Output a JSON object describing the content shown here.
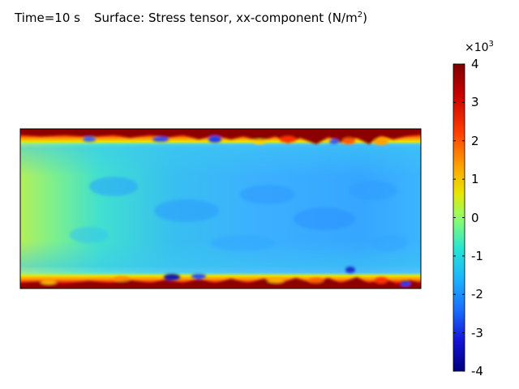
{
  "header": {
    "time_label": "Time=10 s",
    "title_prefix": "Surface: Stress tensor, xx-component (N/m",
    "title_exponent": "2",
    "title_suffix": ")"
  },
  "colorbar": {
    "scale_base": "×10",
    "scale_exponent": "3",
    "range": [
      -4,
      4
    ],
    "tick_labels": [
      "4",
      "3",
      "2",
      "1",
      "0",
      "-1",
      "-2",
      "-3",
      "-4"
    ],
    "colormap_stops": [
      "#7f0000",
      "#ff1a00",
      "#ff8c00",
      "#f2e000",
      "#8fff6a",
      "#22e0d0",
      "#1a9fff",
      "#1a40ff",
      "#00007f"
    ]
  },
  "surface": {
    "colors": {
      "top_edge_band": "#8b0000",
      "bottom_edge_band": "#8b0000",
      "left_region": "#b4f05a",
      "core_region": "#3cb0ff",
      "transition_region": "#40e0d0",
      "hotspot_low": "#1a3cff"
    }
  }
}
